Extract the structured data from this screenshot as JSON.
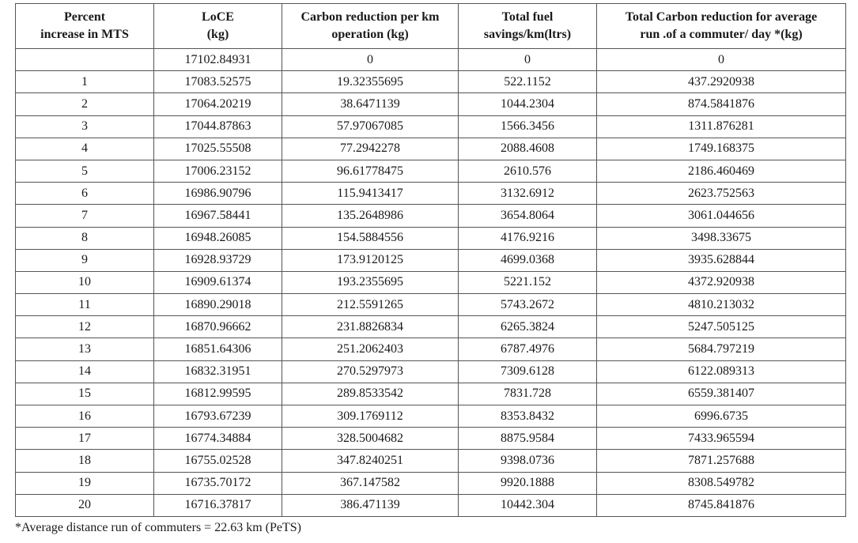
{
  "table": {
    "headers": [
      [
        "Percent",
        "increase in MTS"
      ],
      [
        "LoCE",
        "(kg)"
      ],
      [
        "Carbon reduction per km",
        "operation (kg)"
      ],
      [
        "Total fuel",
        "savings/km(ltrs)"
      ],
      [
        "Total Carbon reduction for average",
        "run .of a commuter/ day *(kg)"
      ]
    ],
    "rows": [
      [
        "",
        "17102.84931",
        "0",
        "0",
        "0"
      ],
      [
        "1",
        "17083.52575",
        "19.32355695",
        "522.1152",
        "437.2920938"
      ],
      [
        "2",
        "17064.20219",
        "38.6471139",
        "1044.2304",
        "874.5841876"
      ],
      [
        "3",
        "17044.87863",
        "57.97067085",
        "1566.3456",
        "1311.876281"
      ],
      [
        "4",
        "17025.55508",
        "77.2942278",
        "2088.4608",
        "1749.168375"
      ],
      [
        "5",
        "17006.23152",
        "96.61778475",
        "2610.576",
        "2186.460469"
      ],
      [
        "6",
        "16986.90796",
        "115.9413417",
        "3132.6912",
        "2623.752563"
      ],
      [
        "7",
        "16967.58441",
        "135.2648986",
        "3654.8064",
        "3061.044656"
      ],
      [
        "8",
        "16948.26085",
        "154.5884556",
        "4176.9216",
        "3498.33675"
      ],
      [
        "9",
        "16928.93729",
        "173.9120125",
        "4699.0368",
        "3935.628844"
      ],
      [
        "10",
        "16909.61374",
        "193.2355695",
        "5221.152",
        "4372.920938"
      ],
      [
        "11",
        "16890.29018",
        "212.5591265",
        "5743.2672",
        "4810.213032"
      ],
      [
        "12",
        "16870.96662",
        "231.8826834",
        "6265.3824",
        "5247.505125"
      ],
      [
        "13",
        "16851.64306",
        "251.2062403",
        "6787.4976",
        "5684.797219"
      ],
      [
        "14",
        "16832.31951",
        "270.5297973",
        "7309.6128",
        "6122.089313"
      ],
      [
        "15",
        "16812.99595",
        "289.8533542",
        "7831.728",
        "6559.381407"
      ],
      [
        "16",
        "16793.67239",
        "309.1769112",
        "8353.8432",
        "6996.6735"
      ],
      [
        "17",
        "16774.34884",
        "328.5004682",
        "8875.9584",
        "7433.965594"
      ],
      [
        "18",
        "16755.02528",
        "347.8240251",
        "9398.0736",
        "7871.257688"
      ],
      [
        "19",
        "16735.70172",
        "367.147582",
        "9920.1888",
        "8308.549782"
      ],
      [
        "20",
        "16716.37817",
        "386.471139",
        "10442.304",
        "8745.841876"
      ]
    ]
  },
  "footnote": "*Average distance run of commuters = 22.63 km (PeTS)"
}
